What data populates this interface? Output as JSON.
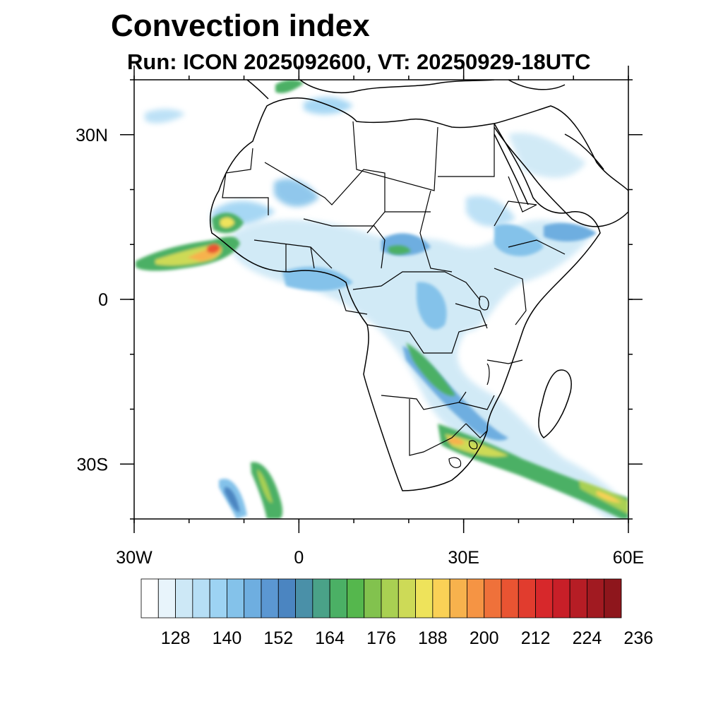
{
  "title": "Convection index",
  "subtitle": "Run: ICON 2025092600,  VT: 20250929-18UTC",
  "map": {
    "region": "Africa",
    "projection": "cylindrical equidistant",
    "lon_range": [
      -30,
      60
    ],
    "lat_range": [
      -40,
      40
    ],
    "lon_labels": [
      {
        "value": -30,
        "text": "30W"
      },
      {
        "value": 0,
        "text": "0"
      },
      {
        "value": 30,
        "text": "30E"
      },
      {
        "value": 60,
        "text": "60E"
      }
    ],
    "lat_labels": [
      {
        "value": 30,
        "text": "30N"
      },
      {
        "value": 0,
        "text": "0"
      },
      {
        "value": -30,
        "text": "30S"
      }
    ],
    "field_colors": {
      "land_outline": "#000000",
      "ocean": "#ffffff"
    }
  },
  "colorbar": {
    "colors": [
      "#ffffff",
      "#e8f4fb",
      "#cde8f6",
      "#b6def5",
      "#9dd3f3",
      "#84c2ea",
      "#6eaee0",
      "#5b97d2",
      "#4b85c1",
      "#4a90a8",
      "#4aa288",
      "#4bb065",
      "#55b74d",
      "#82c24e",
      "#a9d052",
      "#cdda57",
      "#eee35b",
      "#fad156",
      "#f7b24d",
      "#f59444",
      "#ef713a",
      "#e95432",
      "#e13c2e",
      "#d7282b",
      "#c81f28",
      "#b61d25",
      "#a11a21",
      "#8e161c"
    ],
    "labels": [
      "128",
      "140",
      "152",
      "164",
      "176",
      "188",
      "200",
      "212",
      "224",
      "236"
    ]
  }
}
